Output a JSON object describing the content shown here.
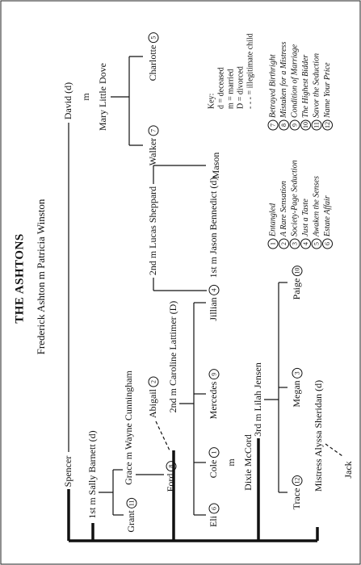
{
  "title": "THE ASHTONS",
  "patriarch": "Frederick Ashton m Patricia Winston",
  "people": [
    {
      "label": "Spencer"
    },
    {
      "label": "David (d)"
    },
    {
      "label": "m"
    },
    {
      "label": "Mary Little Dove"
    },
    {
      "label": "Walker",
      "book": 7
    },
    {
      "label": "Charlotte",
      "book": 5
    },
    {
      "label": "1st m Sally Barnett (d)"
    },
    {
      "label": "Grant",
      "book": 11
    },
    {
      "label": "Grace m Wayne Cunningham"
    },
    {
      "label": "Ford",
      "book": 8
    },
    {
      "label": "Abigail",
      "book": 2
    },
    {
      "label": "2nd m Caroline Lattimer (D)"
    },
    {
      "label": "Eli",
      "book": 6
    },
    {
      "label": "Cole",
      "book": 1
    },
    {
      "label": "m"
    },
    {
      "label": "Dixie McCord"
    },
    {
      "label": "Mercedes",
      "book": 9
    },
    {
      "label": "Jillian",
      "book": 4
    },
    {
      "label": "1st m Jason Bennedict (d)"
    },
    {
      "label": "2nd m Lucas Sheppard"
    },
    {
      "label": "Mason"
    },
    {
      "label": "3rd m Lilah Jensen"
    },
    {
      "label": "Trace",
      "book": 12
    },
    {
      "label": "Megan",
      "book": 3
    },
    {
      "label": "Paige",
      "book": 10
    },
    {
      "label": "Mistress Alyssa Sheridan (d)"
    },
    {
      "label": "Jack"
    }
  ],
  "key": {
    "heading": "Key:",
    "items": [
      "d = deceased",
      "m = married",
      "D = divorced",
      "- - - = illegitimate child"
    ]
  },
  "books": [
    {
      "number": 1,
      "title": "Entangled"
    },
    {
      "number": 2,
      "title": "A Rare Sensation"
    },
    {
      "number": 3,
      "title": "Society-Page Seduction"
    },
    {
      "number": 4,
      "title": "Just a Taste"
    },
    {
      "number": 5,
      "title": "Awaken the Senses"
    },
    {
      "number": 6,
      "title": "Estate Affair"
    },
    {
      "number": 7,
      "title": "Betrayed Birthright"
    },
    {
      "number": 8,
      "title": "Mistaken for a Mistress"
    },
    {
      "number": 9,
      "title": "Condition of Marriage"
    },
    {
      "number": 10,
      "title": "The Highest Bidder"
    },
    {
      "number": 11,
      "title": "Savor the Seduction"
    },
    {
      "number": 12,
      "title": "Name Your Price"
    }
  ]
}
